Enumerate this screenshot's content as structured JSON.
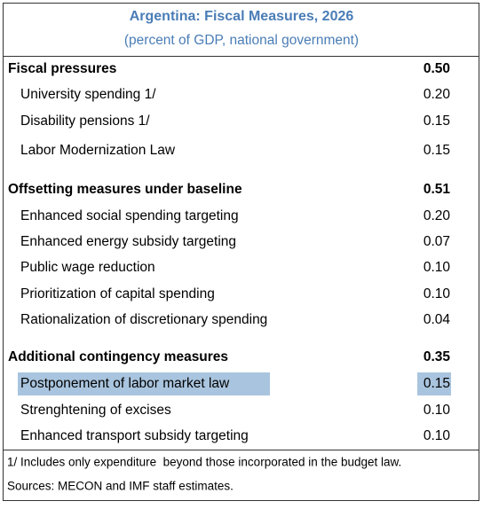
{
  "header": {
    "title": "Argentina: Fiscal Measures, 2026",
    "subtitle": "(percent of GDP, national government)"
  },
  "sections": [
    {
      "label": "Fiscal pressures",
      "value": "0.50",
      "rows": [
        {
          "label": "University spending 1/",
          "value": "0.20"
        },
        {
          "label": "Disability pensions 1/",
          "value": "0.15"
        },
        {
          "label": "Labor Modernization Law",
          "value": "0.15"
        }
      ]
    },
    {
      "label": "Offsetting measures under baseline",
      "value": "0.51",
      "rows": [
        {
          "label": "Enhanced social spending targeting",
          "value": "0.20"
        },
        {
          "label": "Enhanced energy subsidy targeting",
          "value": "0.07"
        },
        {
          "label": "Public wage reduction",
          "value": "0.10"
        },
        {
          "label": "Prioritization of capital spending",
          "value": "0.10"
        },
        {
          "label": "Rationalization of discretionary spending",
          "value": "0.04"
        }
      ]
    },
    {
      "label": "Additional contingency measures",
      "value": "0.35",
      "rows": [
        {
          "label": "Postponement of labor market law",
          "value": "0.15",
          "highlighted": true
        },
        {
          "label": "Strenghtening of excises",
          "value": "0.10"
        },
        {
          "label": "Enhanced transport subsidy targeting",
          "value": "0.10"
        }
      ]
    }
  ],
  "footnotes": [
    "1/ Includes only expenditure  beyond those incorporated in the budget law.",
    "Sources: MECON and IMF staff estimates."
  ]
}
